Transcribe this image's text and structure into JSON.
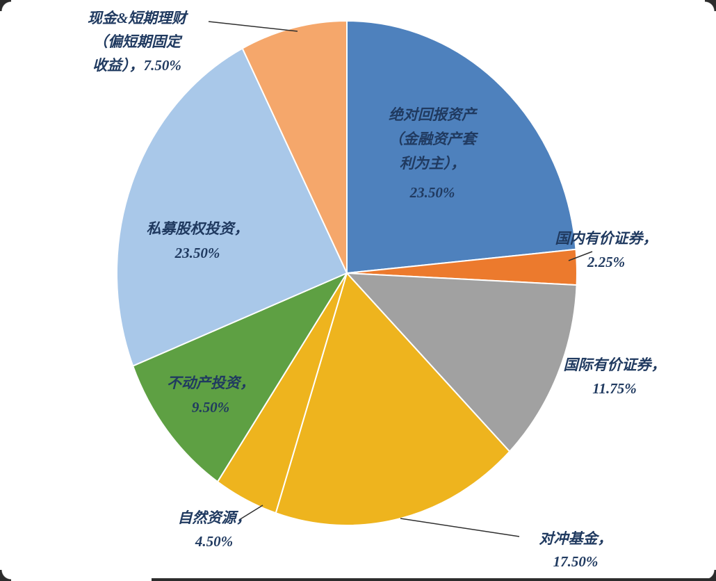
{
  "chart_data": {
    "type": "pie",
    "title": "",
    "legend": "none",
    "background": "#FFFFFF",
    "text_color": "#203A60",
    "leader_line_color": "#2F2F2F",
    "start_angle_deg": 0,
    "direction": "clockwise",
    "slices": [
      {
        "label": "绝对回报资产（金融资产套利为主）",
        "value": 23.5,
        "display": "23.50%",
        "color": "#4E81BD",
        "placement": "inside",
        "label_lines": [
          "绝对回报资产",
          "（金融资产套",
          "利为主），",
          "23.50%"
        ]
      },
      {
        "label": "国内有价证券",
        "value": 2.25,
        "display": "2.25%",
        "color": "#EC7A2D",
        "placement": "outside",
        "label_lines": [
          "国内有价证券，",
          "2.25%"
        ]
      },
      {
        "label": "国际有价证券",
        "value": 11.75,
        "display": "11.75%",
        "color": "#A1A1A1",
        "placement": "outside",
        "label_lines": [
          "国际有价证券，",
          "11.75%"
        ]
      },
      {
        "label": "对冲基金",
        "value": 17.5,
        "display": "17.50%",
        "color": "#EEB41E",
        "placement": "outside",
        "label_lines": [
          "对冲基金，",
          "17.50%"
        ]
      },
      {
        "label": "自然资源",
        "value": 4.5,
        "display": "4.50%",
        "color": "#EEB41E",
        "placement": "outside",
        "label_lines": [
          "自然资源，",
          "4.50%"
        ]
      },
      {
        "label": "不动产投资",
        "value": 9.5,
        "display": "9.50%",
        "color": "#5EA043",
        "placement": "inside",
        "label_lines": [
          "不动产投资，",
          "9.50%"
        ]
      },
      {
        "label": "私募股权投资",
        "value": 23.5,
        "display": "23.50%",
        "color": "#A9C8E9",
        "placement": "inside",
        "label_lines": [
          "私募股权投资，",
          "23.50%"
        ]
      },
      {
        "label": "现金&短期理财（偏短期固定收益）",
        "value": 7.5,
        "display": "7.50%",
        "color": "#F5A76B",
        "placement": "outside",
        "label_lines": [
          "现金&短期理财",
          "（偏短期固定",
          "收益），7.50%"
        ]
      }
    ]
  },
  "frame": {
    "artifact_color": "#2C2C2C"
  }
}
